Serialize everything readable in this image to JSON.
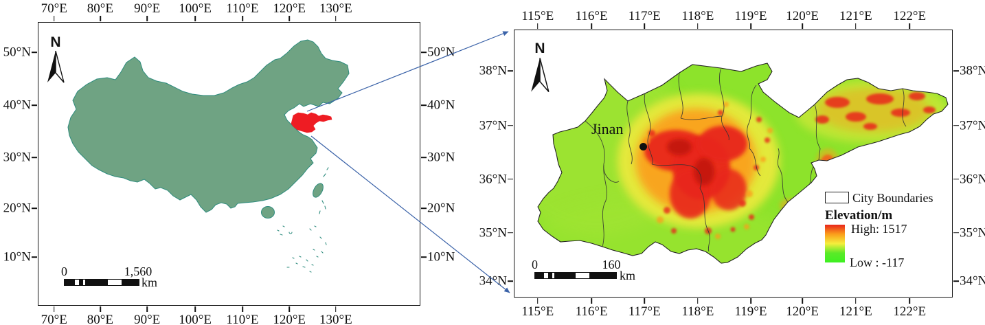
{
  "figure": {
    "connector_color": "#3A62A8",
    "left_map": {
      "name": "China overview map",
      "land_color": "#6FA383",
      "coast_color": "#2E8C7E",
      "highlight_color": "#EE1C23",
      "highlighted_region": "Shandong",
      "north_label": "N",
      "lon_ticks": [
        {
          "label": "70°E",
          "f": 0.041
        },
        {
          "label": "80°E",
          "f": 0.162
        },
        {
          "label": "90°E",
          "f": 0.285
        },
        {
          "label": "100°E",
          "f": 0.411
        },
        {
          "label": "110°E",
          "f": 0.535
        },
        {
          "label": "120°E",
          "f": 0.658
        },
        {
          "label": "130°E",
          "f": 0.78
        }
      ],
      "lat_ticks": [
        {
          "label": "50°N",
          "f": 0.105
        },
        {
          "label": "40°N",
          "f": 0.292
        },
        {
          "label": "30°N",
          "f": 0.477
        },
        {
          "label": "20°N",
          "f": 0.657
        },
        {
          "label": "10°N",
          "f": 0.83
        }
      ],
      "scale_bar": {
        "zero": "0",
        "distance": "1,560",
        "unit": "km"
      }
    },
    "right_map": {
      "name": "Shandong elevation map",
      "city_label": "Jinan",
      "north_label": "N",
      "base_green": "#8DE32B",
      "lon_ticks": [
        {
          "label": "115°E",
          "f": 0.053
        },
        {
          "label": "116°E",
          "f": 0.176
        },
        {
          "label": "117°E",
          "f": 0.297
        },
        {
          "label": "118°E",
          "f": 0.419
        },
        {
          "label": "119°E",
          "f": 0.54
        },
        {
          "label": "120°E",
          "f": 0.658
        },
        {
          "label": "121°E",
          "f": 0.78
        },
        {
          "label": "122°E",
          "f": 0.903
        }
      ],
      "lat_ticks": [
        {
          "label": "38°N",
          "f": 0.152
        },
        {
          "label": "37°N",
          "f": 0.358
        },
        {
          "label": "36°N",
          "f": 0.559
        },
        {
          "label": "35°N",
          "f": 0.76
        },
        {
          "label": "34°N",
          "f": 0.941
        }
      ],
      "scale_bar": {
        "zero": "0",
        "distance": "160",
        "unit": "km"
      },
      "legend": {
        "boundaries_label": "City Boundaries",
        "elevation_title": "Elevation/m",
        "high_label": "High: 1517",
        "low_label": "Low : -117",
        "ramp_colors": [
          "#E8251B",
          "#FB9E1B",
          "#F5EE3C",
          "#5BEA28",
          "#3DF021"
        ]
      }
    }
  }
}
